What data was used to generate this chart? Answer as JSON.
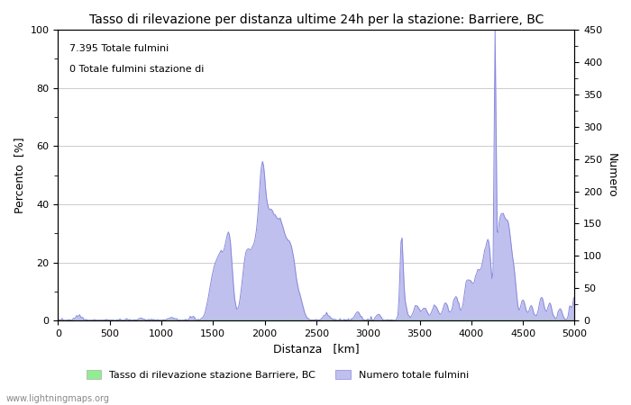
{
  "title": "Tasso di rilevazione per distanza ultime 24h per la stazione: Barriere, BC",
  "xlabel": "Distanza   [km]",
  "ylabel_left": "Percento  [%]",
  "ylabel_right": "Numero",
  "annotation_line1": "7.395 Totale fulmini",
  "annotation_line2": "0 Totale fulmini stazione di",
  "legend_label1": "Tasso di rilevazione stazione Barriere, BC",
  "legend_label2": "Numero totale fulmini",
  "watermark": "www.lightningmaps.org",
  "xlim": [
    0,
    5000
  ],
  "ylim_left": [
    0,
    100
  ],
  "ylim_right": [
    0,
    450
  ],
  "xticks": [
    0,
    500,
    1000,
    1500,
    2000,
    2500,
    3000,
    3500,
    4000,
    4500,
    5000
  ],
  "yticks_left": [
    0,
    20,
    40,
    60,
    80,
    100
  ],
  "yticks_right": [
    0,
    50,
    100,
    150,
    200,
    250,
    300,
    350,
    400,
    450
  ],
  "line_color": "#8888dd",
  "fill_color": "#c0c0ee",
  "green_fill_color": "#90ee90",
  "background_color": "#ffffff",
  "grid_color": "#cccccc"
}
